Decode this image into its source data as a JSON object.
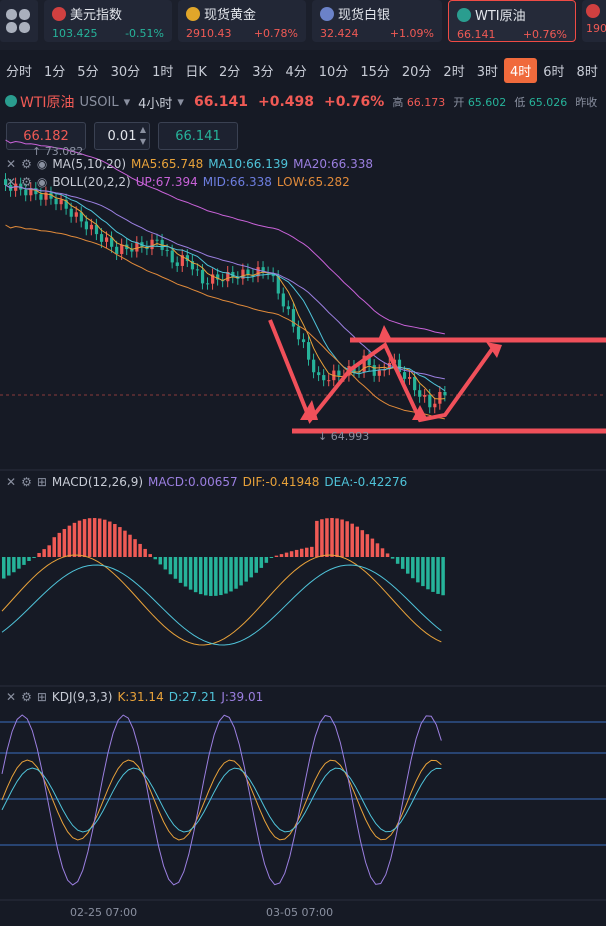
{
  "quotes": [
    {
      "name": "美元指数",
      "value": "103.425",
      "change": "-0.51%",
      "dir": "down",
      "flag_color": "#d04040"
    },
    {
      "name": "现货黄金",
      "value": "2910.43",
      "change": "+0.78%",
      "dir": "up",
      "flag_color": "#e0a62a"
    },
    {
      "name": "现货白银",
      "value": "32.424",
      "change": "+1.09%",
      "dir": "up",
      "flag_color": "#6b82c8"
    },
    {
      "name": "WTI原油",
      "value": "66.141",
      "change": "+0.76%",
      "dir": "up",
      "flag_color": "#2a9d8f"
    },
    {
      "name": "",
      "value": "190",
      "change": "",
      "dir": "up",
      "flag_color": "#d04040"
    }
  ],
  "periods": [
    "分时",
    "1分",
    "5分",
    "30分",
    "1时",
    "日K",
    "2分",
    "3分",
    "4分",
    "10分",
    "15分",
    "20分",
    "2时",
    "3时",
    "4时",
    "6时",
    "8时"
  ],
  "active_period": "4时",
  "symbol": {
    "name": "WTI原油",
    "code": "USOIL",
    "period": "4小时",
    "price": "66.141",
    "change": "+0.498",
    "change_pct": "+0.76%",
    "high_label": "高",
    "high": "66.173",
    "open_label": "开",
    "open": "65.602",
    "low_label": "低",
    "low": "65.026",
    "prev_label": "昨收"
  },
  "trade": {
    "sell": "66.182",
    "lot": "0.01",
    "buy": "66.141"
  },
  "indicators": {
    "ma": {
      "label": "MA(5,10,20)",
      "ma5": "MA5:65.748",
      "ma10": "MA10:66.139",
      "ma20": "MA20:66.338"
    },
    "boll": {
      "label": "BOLL(20,2,2)",
      "up": "UP:67.394",
      "mid": "MID:66.338",
      "low": "LOW:65.282"
    },
    "macd": {
      "label": "MACD(12,26,9)",
      "macd": "MACD:0.00657",
      "dif": "DIF:-0.41948",
      "dea": "DEA:-0.42276"
    },
    "kdj": {
      "label": "KDJ(9,3,3)",
      "k": "K:31.14",
      "d": "D:27.21",
      "j": "J:39.01"
    }
  },
  "price_labels": {
    "high_mark": "73.082",
    "low_mark": "64.993"
  },
  "dates": [
    "02-25 07:00",
    "03-05 07:00"
  ],
  "colors": {
    "up": "#f05a55",
    "down": "#26b39a",
    "accent": "#f06a3c",
    "ma5": "#e8a23a",
    "ma10": "#4fc3d9",
    "ma20": "#9b7fe0"
  }
}
